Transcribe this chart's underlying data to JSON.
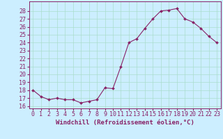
{
  "x": [
    0,
    1,
    2,
    3,
    4,
    5,
    6,
    7,
    8,
    9,
    10,
    11,
    12,
    13,
    14,
    15,
    16,
    17,
    18,
    19,
    20,
    21,
    22,
    23
  ],
  "y": [
    18,
    17.2,
    16.8,
    17.0,
    16.8,
    16.8,
    16.4,
    16.6,
    16.8,
    18.3,
    18.2,
    21.0,
    24.0,
    24.5,
    25.8,
    27.0,
    28.0,
    28.1,
    28.3,
    27.0,
    26.6,
    25.8,
    24.8,
    24.0
  ],
  "line_color": "#882266",
  "marker_color": "#882266",
  "bg_color": "#cceeff",
  "grid_color": "#aaddcc",
  "ylabel_ticks": [
    16,
    17,
    18,
    19,
    20,
    21,
    22,
    23,
    24,
    25,
    26,
    27,
    28
  ],
  "ylim": [
    15.7,
    29.2
  ],
  "xlabel": "Windchill (Refroidissement éolien,°C)",
  "tick_fontsize": 6,
  "label_fontsize": 6.5,
  "xticks": [
    0,
    1,
    2,
    3,
    4,
    5,
    6,
    7,
    8,
    9,
    10,
    11,
    12,
    13,
    14,
    15,
    16,
    17,
    18,
    19,
    20,
    21,
    22,
    23
  ]
}
